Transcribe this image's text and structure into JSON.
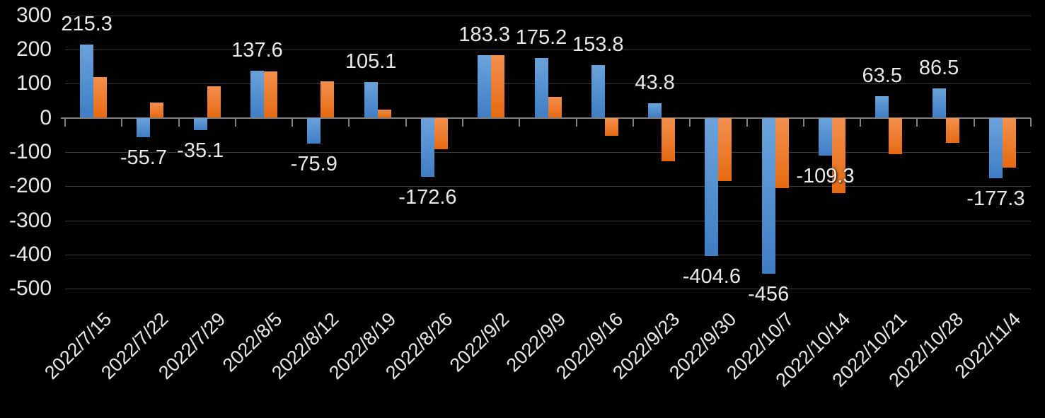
{
  "chart_data": {
    "type": "bar",
    "title": "",
    "legend_position": "none",
    "grid": true,
    "background": "#000000",
    "categories": [
      "2022/7/15",
      "2022/7/22",
      "2022/7/29",
      "2022/8/5",
      "2022/8/12",
      "2022/8/19",
      "2022/8/26",
      "2022/9/2",
      "2022/9/9",
      "2022/9/16",
      "2022/9/23",
      "2022/9/30",
      "2022/10/7",
      "2022/10/14",
      "2022/10/21",
      "2022/10/28",
      "2022/11/4"
    ],
    "series": [
      {
        "key": "blue-series",
        "values": [
          215.3,
          -55.7,
          -35.1,
          137.6,
          -75.9,
          105.1,
          -172.6,
          183.3,
          175.2,
          153.8,
          43.8,
          -404.6,
          -456,
          -109.3,
          63.5,
          86.5,
          -177.3
        ],
        "data_labels": [
          "215.3",
          "-55.7",
          "-35.1",
          "137.6",
          "-75.9",
          "105.1",
          "-172.6",
          "183.3",
          "175.2",
          "153.8",
          "43.8",
          "-404.6",
          "-456",
          "-109.3",
          "63.5",
          "86.5",
          "-177.3"
        ]
      },
      {
        "key": "orange-series",
        "values": [
          119,
          45,
          92,
          136,
          107,
          25,
          -91,
          184,
          61,
          -53,
          -127,
          -185,
          -205,
          -220,
          -107,
          -73,
          -145
        ],
        "data_labels": null
      }
    ],
    "xlabel": "",
    "ylabel": "",
    "ylim": [
      -500,
      300
    ],
    "yticks": [
      300,
      200,
      100,
      0,
      -100,
      -200,
      -300,
      -400,
      -500
    ],
    "ytick_labels": [
      "300",
      "200",
      "100",
      "0",
      "-100",
      "-200",
      "-300",
      "-400",
      "-500"
    ],
    "colors": {
      "blue_top": "#6ba2da",
      "blue_bottom": "#3f7ec5",
      "orange_top": "#f2904e",
      "orange_bottom": "#e66a11",
      "gridline": "#3b3b3b",
      "axis_line": "#7f7f7f",
      "text": "#eaeaea",
      "background": "#000000"
    }
  }
}
